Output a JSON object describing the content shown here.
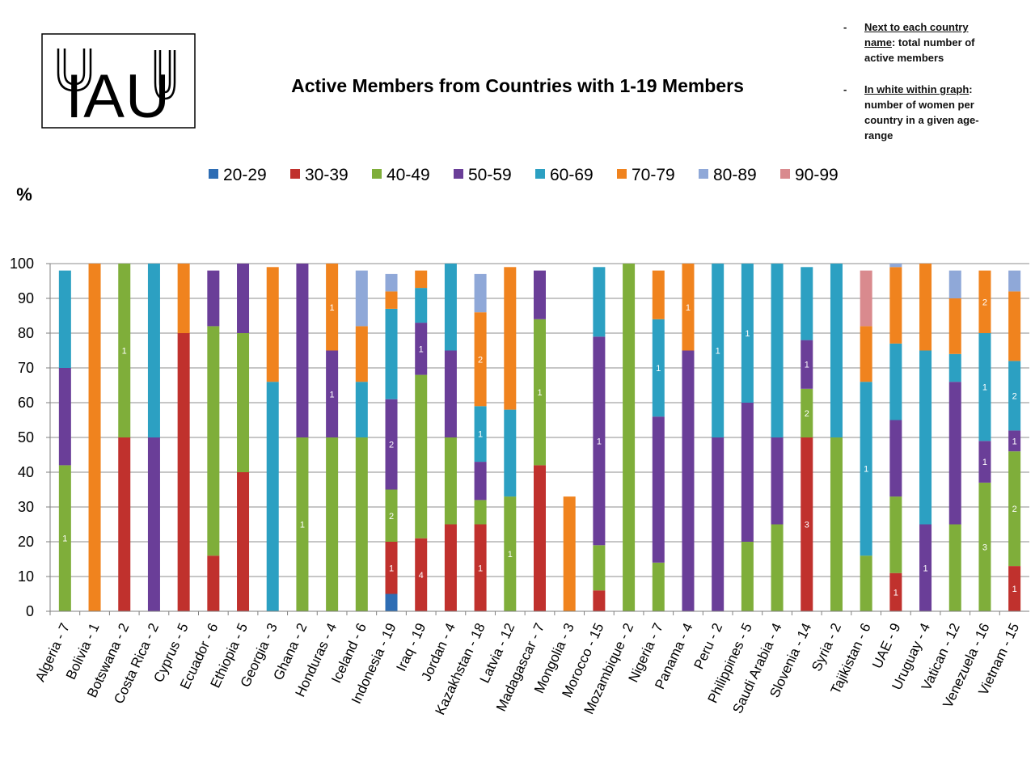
{
  "notes": [
    {
      "dash": "-",
      "underlined": "Next to each country name",
      "rest": ":  total  number of active members"
    },
    {
      "dash": "-",
      "underlined": "In white within graph",
      "rest": ": number of women per country  in a given age-range"
    }
  ],
  "logo": {
    "text": "IAU"
  },
  "chart_data": {
    "type": "bar",
    "stacked": true,
    "title": "Active Members from Countries with 1-19 Members",
    "ylabel": "%",
    "xlabel": "",
    "ylim": [
      0,
      100
    ],
    "yticks": [
      0,
      10,
      20,
      30,
      40,
      50,
      60,
      70,
      80,
      90,
      100
    ],
    "grid": true,
    "legend_position": "top",
    "categories": [
      "Algeria - 7",
      "Bolivia - 1",
      "Botswana - 2",
      "Costa Rica - 2",
      "Cyprus - 5",
      "Ecuador - 6",
      "Ethiopia - 5",
      "Georgia - 3",
      "Ghana - 2",
      "Honduras - 4",
      "Iceland - 6",
      "Indonesia - 19",
      "Iraq - 19",
      "Jordan - 4",
      "Kazakhstan - 18",
      "Latvia - 12",
      "Madagascar - 7",
      "Mongolia - 3",
      "Morocco - 15",
      "Mozambique - 2",
      "Nigeria - 7",
      "Panama - 4",
      "Peru - 2",
      "Philippines - 5",
      "Saudi Arabia - 4",
      "Slovenia - 14",
      "Syria - 2",
      "Tajikistan - 6",
      "UAE - 9",
      "Uruguay - 4",
      "Vatican - 12",
      "Venezuela - 16",
      "Vietnam - 15"
    ],
    "series": [
      {
        "name": "20-29",
        "color": "#2E6DB4",
        "values": [
          0,
          0,
          0,
          0,
          0,
          0,
          0,
          0,
          0,
          0,
          0,
          5,
          0,
          0,
          0,
          0,
          0,
          0,
          0,
          0,
          0,
          0,
          0,
          0,
          0,
          0,
          0,
          0,
          0,
          0,
          0,
          0,
          0
        ]
      },
      {
        "name": "30-39",
        "color": "#C0312D",
        "values": [
          0,
          0,
          50,
          0,
          80,
          16,
          40,
          0,
          0,
          0,
          0,
          15,
          21,
          25,
          25,
          0,
          42,
          0,
          6,
          0,
          0,
          0,
          0,
          0,
          0,
          50,
          0,
          0,
          11,
          0,
          0,
          0,
          13
        ]
      },
      {
        "name": "40-49",
        "color": "#7FAE3A",
        "values": [
          42,
          0,
          50,
          0,
          0,
          66,
          40,
          0,
          50,
          50,
          50,
          15,
          47,
          25,
          7,
          33,
          42,
          0,
          13,
          100,
          14,
          0,
          0,
          20,
          25,
          14,
          50,
          16,
          22,
          0,
          25,
          37,
          33
        ]
      },
      {
        "name": "50-59",
        "color": "#6A3E98",
        "values": [
          28,
          0,
          0,
          50,
          0,
          16,
          20,
          0,
          50,
          25,
          0,
          26,
          15,
          25,
          11,
          0,
          14,
          0,
          60,
          0,
          42,
          75,
          50,
          40,
          25,
          14,
          0,
          0,
          22,
          25,
          41,
          12,
          6
        ]
      },
      {
        "name": "60-69",
        "color": "#2CA0C2",
        "values": [
          28,
          0,
          0,
          50,
          0,
          0,
          0,
          66,
          0,
          0,
          16,
          26,
          10,
          25,
          16,
          25,
          0,
          0,
          20,
          0,
          28,
          0,
          50,
          40,
          50,
          21,
          50,
          50,
          22,
          50,
          8,
          31,
          20
        ]
      },
      {
        "name": "70-79",
        "color": "#F0831E",
        "values": [
          0,
          100,
          0,
          0,
          20,
          0,
          0,
          33,
          0,
          25,
          16,
          5,
          5,
          0,
          27,
          41,
          0,
          33,
          0,
          0,
          14,
          25,
          0,
          0,
          0,
          0,
          0,
          16,
          22,
          25,
          16,
          18,
          20
        ]
      },
      {
        "name": "80-89",
        "color": "#8FA8D8",
        "values": [
          0,
          0,
          0,
          0,
          0,
          0,
          0,
          0,
          0,
          0,
          16,
          5,
          0,
          0,
          11,
          0,
          0,
          0,
          0,
          0,
          0,
          0,
          0,
          0,
          0,
          0,
          0,
          0,
          1,
          0,
          8,
          0,
          6
        ]
      },
      {
        "name": "90-99",
        "color": "#D98A8E",
        "values": [
          0,
          0,
          0,
          0,
          0,
          0,
          0,
          0,
          0,
          0,
          0,
          0,
          0,
          0,
          0,
          0,
          0,
          0,
          0,
          0,
          0,
          0,
          0,
          0,
          0,
          0,
          0,
          16,
          0,
          0,
          0,
          0,
          0
        ]
      }
    ],
    "women_labels": [
      {
        "country": "Algeria - 7",
        "series": "40-49",
        "value": "1"
      },
      {
        "country": "Botswana - 2",
        "series": "40-49",
        "value": "1"
      },
      {
        "country": "Ghana - 2",
        "series": "40-49",
        "value": "1"
      },
      {
        "country": "Honduras - 4",
        "series": "50-59",
        "value": "1"
      },
      {
        "country": "Honduras - 4",
        "series": "70-79",
        "value": "1"
      },
      {
        "country": "Indonesia - 19",
        "series": "30-39",
        "value": "1"
      },
      {
        "country": "Indonesia - 19",
        "series": "40-49",
        "value": "2"
      },
      {
        "country": "Indonesia - 19",
        "series": "50-59",
        "value": "2"
      },
      {
        "country": "Iraq - 19",
        "series": "30-39",
        "value": "4"
      },
      {
        "country": "Iraq - 19",
        "series": "50-59",
        "value": "1"
      },
      {
        "country": "Kazakhstan - 18",
        "series": "30-39",
        "value": "1"
      },
      {
        "country": "Kazakhstan - 18",
        "series": "60-69",
        "value": "1"
      },
      {
        "country": "Kazakhstan - 18",
        "series": "70-79",
        "value": "2"
      },
      {
        "country": "Latvia - 12",
        "series": "40-49",
        "value": "1"
      },
      {
        "country": "Madagascar - 7",
        "series": "40-49",
        "value": "1"
      },
      {
        "country": "Morocco - 15",
        "series": "50-59",
        "value": "1"
      },
      {
        "country": "Nigeria - 7",
        "series": "60-69",
        "value": "1"
      },
      {
        "country": "Panama - 4",
        "series": "70-79",
        "value": "1"
      },
      {
        "country": "Peru - 2",
        "series": "60-69",
        "value": "1"
      },
      {
        "country": "Philippines - 5",
        "series": "60-69",
        "value": "1"
      },
      {
        "country": "Slovenia - 14",
        "series": "30-39",
        "value": "3"
      },
      {
        "country": "Slovenia - 14",
        "series": "40-49",
        "value": "2"
      },
      {
        "country": "Slovenia - 14",
        "series": "50-59",
        "value": "1"
      },
      {
        "country": "Tajikistan - 6",
        "series": "60-69",
        "value": "1"
      },
      {
        "country": "UAE - 9",
        "series": "30-39",
        "value": "1"
      },
      {
        "country": "Uruguay - 4",
        "series": "50-59",
        "value": "1"
      },
      {
        "country": "Venezuela - 16",
        "series": "40-49",
        "value": "3"
      },
      {
        "country": "Venezuela - 16",
        "series": "50-59",
        "value": "1"
      },
      {
        "country": "Venezuela - 16",
        "series": "60-69",
        "value": "1"
      },
      {
        "country": "Venezuela - 16",
        "series": "70-79",
        "value": "2"
      },
      {
        "country": "Vietnam - 15",
        "series": "30-39",
        "value": "1"
      },
      {
        "country": "Vietnam - 15",
        "series": "40-49",
        "value": "2"
      },
      {
        "country": "Vietnam - 15",
        "series": "50-59",
        "value": "1"
      },
      {
        "country": "Vietnam - 15",
        "series": "60-69",
        "value": "2"
      }
    ]
  }
}
